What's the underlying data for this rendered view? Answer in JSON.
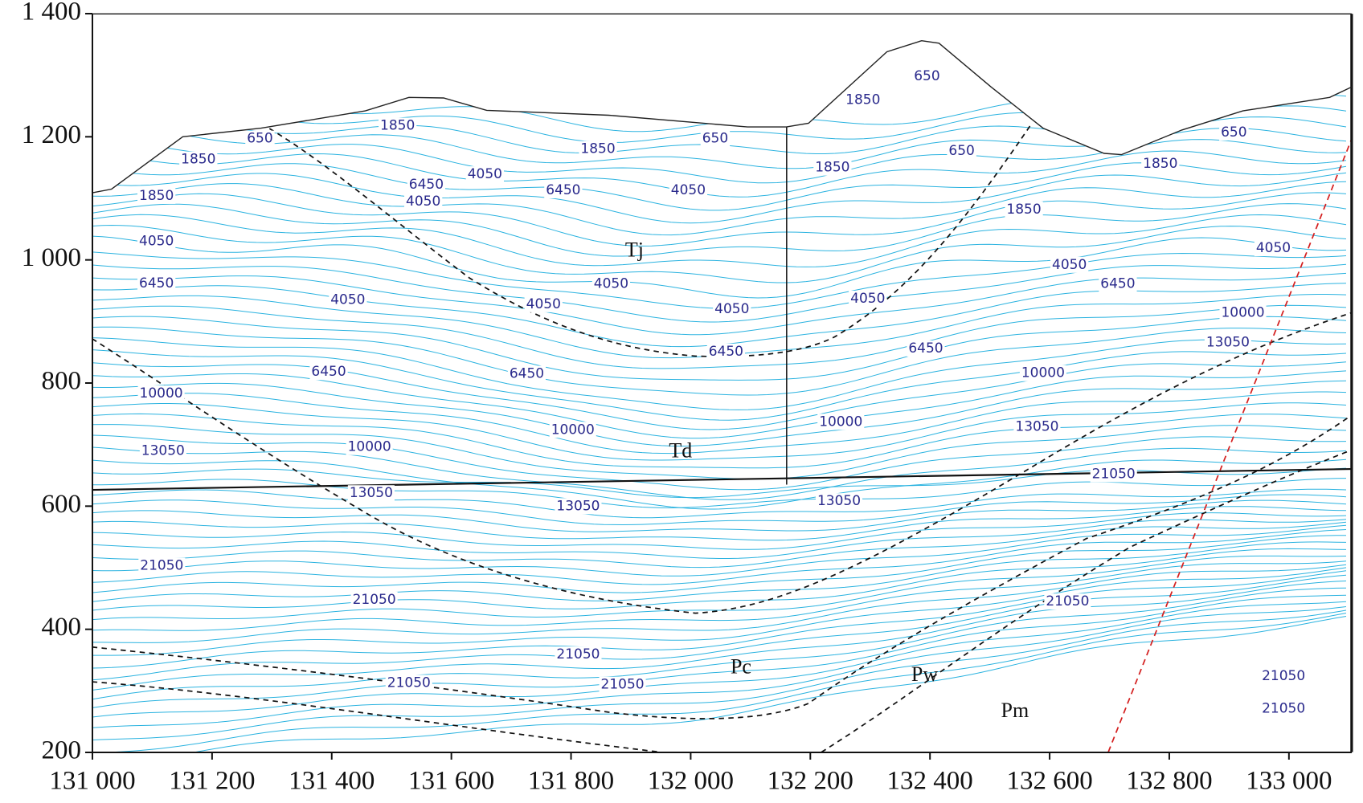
{
  "chart_data": {
    "type": "contour",
    "xlim": [
      131000,
      133105
    ],
    "ylim": [
      200,
      1400
    ],
    "xticks": [
      {
        "value": 131000,
        "label": "131 000"
      },
      {
        "value": 131200,
        "label": "131 200"
      },
      {
        "value": 131400,
        "label": "131 400"
      },
      {
        "value": 131600,
        "label": "131 600"
      },
      {
        "value": 131800,
        "label": "131 800"
      },
      {
        "value": 132000,
        "label": "132 000"
      },
      {
        "value": 132200,
        "label": "132 200"
      },
      {
        "value": 132400,
        "label": "132 400"
      },
      {
        "value": 132600,
        "label": "132 600"
      },
      {
        "value": 132800,
        "label": "132 800"
      },
      {
        "value": 133000,
        "label": "133 000"
      }
    ],
    "yticks": [
      200,
      400,
      600,
      800,
      {
        "value": 1000,
        "label": "1 000"
      },
      {
        "value": 1200,
        "label": "1 200"
      },
      {
        "value": 1400,
        "label": "1 400"
      }
    ],
    "surface": {
      "x": [
        131000,
        131032,
        131151,
        131282,
        131456,
        131529,
        131587,
        131659,
        131863,
        132095,
        132160,
        132197,
        132328,
        132386,
        132415,
        132502,
        132589,
        132691,
        132720,
        132821,
        132923,
        133068,
        133105
      ],
      "y": [
        1109,
        1115,
        1200,
        1214,
        1242,
        1264,
        1263,
        1243,
        1235,
        1216,
        1216,
        1222,
        1338,
        1356,
        1352,
        1281,
        1214,
        1173,
        1171,
        1211,
        1242,
        1264,
        1281
      ]
    },
    "contour_labels": [
      {
        "x": 131280,
        "y": 1197,
        "value": 650
      },
      {
        "x": 131177,
        "y": 1163,
        "value": 1850
      },
      {
        "x": 131107,
        "y": 1104,
        "value": 1850
      },
      {
        "x": 131107,
        "y": 1030,
        "value": 4050
      },
      {
        "x": 131107,
        "y": 962,
        "value": 6450
      },
      {
        "x": 131115,
        "y": 783,
        "value": 10000
      },
      {
        "x": 131118,
        "y": 690,
        "value": 13050
      },
      {
        "x": 131116,
        "y": 503,
        "value": 21050
      },
      {
        "x": 131510,
        "y": 1218,
        "value": 1850
      },
      {
        "x": 131558,
        "y": 1122,
        "value": 6450
      },
      {
        "x": 131553,
        "y": 1095,
        "value": 4050
      },
      {
        "x": 131656,
        "y": 1139,
        "value": 4050
      },
      {
        "x": 131787,
        "y": 1113,
        "value": 6450
      },
      {
        "x": 131845,
        "y": 1180,
        "value": 1850
      },
      {
        "x": 132041,
        "y": 1197,
        "value": 650
      },
      {
        "x": 131996,
        "y": 1113,
        "value": 4050
      },
      {
        "x": 131427,
        "y": 935,
        "value": 4050
      },
      {
        "x": 131867,
        "y": 961,
        "value": 4050
      },
      {
        "x": 131754,
        "y": 928,
        "value": 4050
      },
      {
        "x": 132069,
        "y": 920,
        "value": 4050
      },
      {
        "x": 132059,
        "y": 851,
        "value": 6450
      },
      {
        "x": 131395,
        "y": 818,
        "value": 6450
      },
      {
        "x": 131726,
        "y": 815,
        "value": 6450
      },
      {
        "x": 131463,
        "y": 696,
        "value": 10000
      },
      {
        "x": 131803,
        "y": 724,
        "value": 10000
      },
      {
        "x": 131466,
        "y": 621,
        "value": 13050
      },
      {
        "x": 131812,
        "y": 600,
        "value": 13050
      },
      {
        "x": 132248,
        "y": 608,
        "value": 13050
      },
      {
        "x": 132251,
        "y": 737,
        "value": 10000
      },
      {
        "x": 132288,
        "y": 1260,
        "value": 1850
      },
      {
        "x": 132395,
        "y": 1298,
        "value": 650
      },
      {
        "x": 132453,
        "y": 1177,
        "value": 650
      },
      {
        "x": 132237,
        "y": 1150,
        "value": 1850
      },
      {
        "x": 132557,
        "y": 1082,
        "value": 1850
      },
      {
        "x": 132785,
        "y": 1156,
        "value": 1850
      },
      {
        "x": 132908,
        "y": 1207,
        "value": 650
      },
      {
        "x": 132633,
        "y": 992,
        "value": 4050
      },
      {
        "x": 132296,
        "y": 937,
        "value": 4050
      },
      {
        "x": 132974,
        "y": 1019,
        "value": 4050
      },
      {
        "x": 132714,
        "y": 961,
        "value": 6450
      },
      {
        "x": 132393,
        "y": 856,
        "value": 6450
      },
      {
        "x": 132923,
        "y": 914,
        "value": 10000
      },
      {
        "x": 132589,
        "y": 816,
        "value": 10000
      },
      {
        "x": 132898,
        "y": 866,
        "value": 13050
      },
      {
        "x": 132579,
        "y": 729,
        "value": 13050
      },
      {
        "x": 132707,
        "y": 652,
        "value": 21050
      },
      {
        "x": 131471,
        "y": 448,
        "value": 21050
      },
      {
        "x": 131812,
        "y": 359,
        "value": 21050
      },
      {
        "x": 131529,
        "y": 313,
        "value": 21050
      },
      {
        "x": 131886,
        "y": 310,
        "value": 21050
      },
      {
        "x": 132630,
        "y": 445,
        "value": 21050
      },
      {
        "x": 132991,
        "y": 324,
        "value": 21050
      },
      {
        "x": 132991,
        "y": 271,
        "value": 21050
      }
    ],
    "unit_labels": [
      {
        "text": "Tj",
        "x": 131906,
        "y": 1013
      },
      {
        "text": "Td",
        "x": 131983,
        "y": 687
      },
      {
        "text": "Pc",
        "x": 132084,
        "y": 336
      },
      {
        "text": "Pw",
        "x": 132391,
        "y": 324
      },
      {
        "text": "Pm",
        "x": 132542,
        "y": 265
      }
    ]
  }
}
